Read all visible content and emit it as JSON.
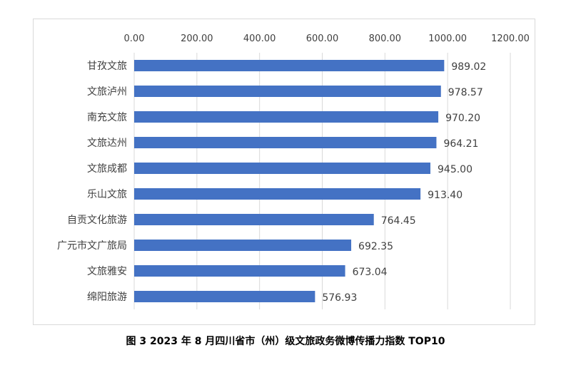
{
  "caption": "图 3   2023 年 8 月四川省市（州）级文旅政务微博传播力指数 TOP10",
  "chart_data": {
    "type": "bar",
    "orientation": "horizontal",
    "title": "",
    "categories": [
      "甘孜文旅",
      "文旅泸州",
      "南充文旅",
      "文旅达州",
      "文旅成都",
      "乐山文旅",
      "自贡文化旅游",
      "广元市文广旅局",
      "文旅雅安",
      "绵阳旅游"
    ],
    "values": [
      989.02,
      978.57,
      970.2,
      964.21,
      945.0,
      913.4,
      764.45,
      692.35,
      673.04,
      576.93
    ],
    "value_labels": [
      "989.02",
      "978.57",
      "970.20",
      "964.21",
      "945.00",
      "913.40",
      "764.45",
      "692.35",
      "673.04",
      "576.93"
    ],
    "x_ticks": [
      "0.00",
      "200.00",
      "400.00",
      "600.00",
      "800.00",
      "1000.00",
      "1200.00"
    ],
    "xlim": [
      0,
      1200
    ],
    "xlabel": "",
    "ylabel": "",
    "grid": true,
    "axis_position": "top",
    "bar_color": "#4472c4",
    "grid_color": "#d9d9d9",
    "label_color": "#404040"
  }
}
